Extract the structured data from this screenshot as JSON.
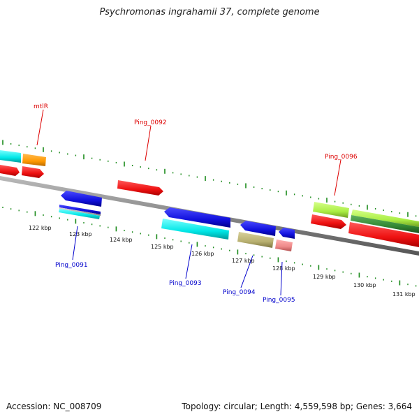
{
  "title": "Psychromonas ingrahamii 37, complete genome",
  "footer": {
    "accession": "Accession: NC_008709",
    "stats": "Topology: circular; Length: 4,559,598 bp; Genes: 3,664"
  },
  "axis": {
    "tick_labels": [
      "122 kbp",
      "123 kbp",
      "124 kbp",
      "125 kbp",
      "126 kbp",
      "127 kbp",
      "128 kbp",
      "129 kbp",
      "130 kbp",
      "131 kbp"
    ]
  },
  "genes_forward": [
    {
      "label": "mtlR",
      "color": "#dd0000"
    },
    {
      "label": "Ping_0092",
      "color": "#dd0000"
    },
    {
      "label": "Ping_0096",
      "color": "#dd0000"
    }
  ],
  "genes_reverse": [
    {
      "label": "Ping_0091",
      "color": "#0000cc"
    },
    {
      "label": "Ping_0093",
      "color": "#0000cc"
    },
    {
      "label": "Ping_0094",
      "color": "#0000cc"
    },
    {
      "label": "Ping_0095",
      "color": "#0000cc"
    }
  ],
  "colors": {
    "backbone": "#888888",
    "tick": "#1a8a1a",
    "forward_gene": "#ee1111",
    "reverse_gene": "#1111dd",
    "cog_cyan": "#00e6e6",
    "cog_orange": "#ff9900",
    "cog_olive": "#b8b070",
    "cog_pink": "#ee8888",
    "cog_lime": "#aaee44",
    "cog_green": "#338833",
    "cog_grey": "#aaaaaa"
  }
}
